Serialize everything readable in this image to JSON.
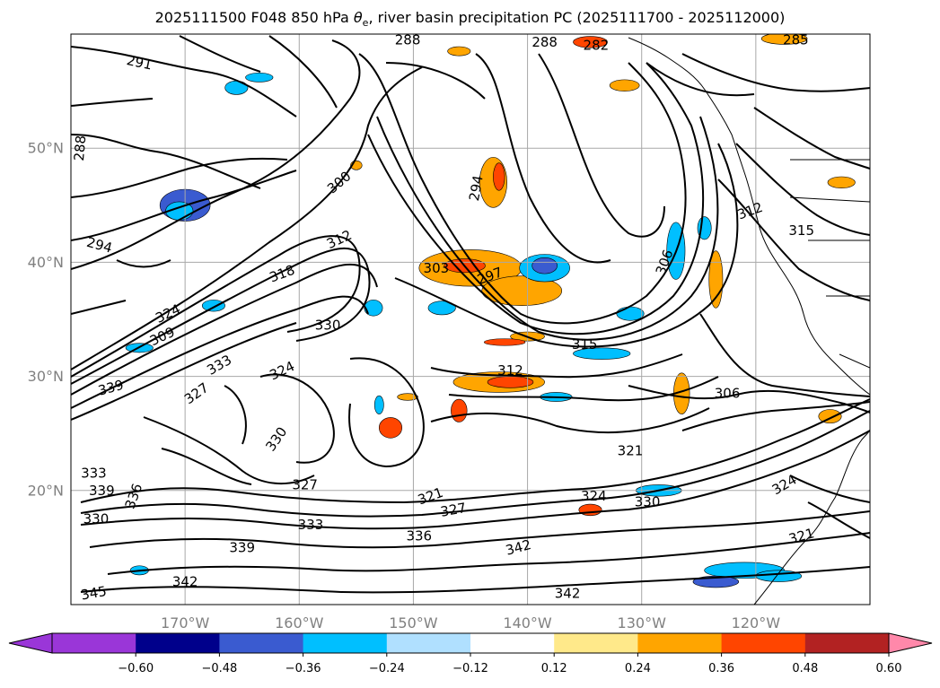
{
  "title": {
    "prefix": "2025111500 F048 850 hPa ",
    "theta": "θ",
    "theta_sub": "e",
    "suffix": ", river basin precipitation PC (2025111700 - 2025112000)"
  },
  "map": {
    "lon_range": [
      -180,
      -110
    ],
    "lat_range": [
      10,
      60
    ],
    "lat_ticks": [
      {
        "value": 50,
        "label": "50°N"
      },
      {
        "value": 40,
        "label": "40°N"
      },
      {
        "value": 30,
        "label": "30°N"
      },
      {
        "value": 20,
        "label": "20°N"
      }
    ],
    "lon_ticks": [
      {
        "value": -170,
        "label": "170°W"
      },
      {
        "value": -160,
        "label": "160°W"
      },
      {
        "value": -150,
        "label": "150°W"
      },
      {
        "value": -140,
        "label": "140°W"
      },
      {
        "value": -130,
        "label": "130°W"
      },
      {
        "value": -120,
        "label": "120°W"
      }
    ],
    "grid": true,
    "contour_variable": "850 hPa theta-e (K)",
    "contour_labels": [
      {
        "text": "291",
        "lon": -174,
        "lat": 57.5,
        "angle": 12
      },
      {
        "text": "288",
        "lon": -179.2,
        "lat": 50,
        "angle": -85
      },
      {
        "text": "288",
        "lon": -150.5,
        "lat": 59.5,
        "angle": 0
      },
      {
        "text": "288",
        "lon": -138.5,
        "lat": 59.3,
        "angle": 0
      },
      {
        "text": "282",
        "lon": -134,
        "lat": 59,
        "angle": 0
      },
      {
        "text": "285",
        "lon": -116.5,
        "lat": 59.5,
        "angle": 0
      },
      {
        "text": "294",
        "lon": -177.5,
        "lat": 41.5,
        "angle": 15
      },
      {
        "text": "294",
        "lon": -144.5,
        "lat": 46.5,
        "angle": -80
      },
      {
        "text": "300",
        "lon": -156.5,
        "lat": 47,
        "angle": -40
      },
      {
        "text": "312",
        "lon": -156.5,
        "lat": 42,
        "angle": -25
      },
      {
        "text": "318",
        "lon": -161.5,
        "lat": 39,
        "angle": -20
      },
      {
        "text": "324",
        "lon": -171.5,
        "lat": 35.5,
        "angle": -25
      },
      {
        "text": "309",
        "lon": -172,
        "lat": 33.5,
        "angle": -25
      },
      {
        "text": "303",
        "lon": -148,
        "lat": 39.5,
        "angle": 0
      },
      {
        "text": "297",
        "lon": -143.3,
        "lat": 38.8,
        "angle": -20
      },
      {
        "text": "330",
        "lon": -157.5,
        "lat": 34.5,
        "angle": 0
      },
      {
        "text": "324",
        "lon": -161.5,
        "lat": 30.5,
        "angle": -25
      },
      {
        "text": "333",
        "lon": -167,
        "lat": 31,
        "angle": -30
      },
      {
        "text": "339",
        "lon": -176.5,
        "lat": 29,
        "angle": -15
      },
      {
        "text": "327",
        "lon": -169,
        "lat": 28.5,
        "angle": -35
      },
      {
        "text": "312",
        "lon": -141.5,
        "lat": 30.5,
        "angle": 0
      },
      {
        "text": "315",
        "lon": -135,
        "lat": 32.8,
        "angle": 0
      },
      {
        "text": "306",
        "lon": -128,
        "lat": 40,
        "angle": -70
      },
      {
        "text": "306",
        "lon": -122.5,
        "lat": 28.5,
        "angle": 0
      },
      {
        "text": "312",
        "lon": -120.5,
        "lat": 44.5,
        "angle": -20
      },
      {
        "text": "315",
        "lon": -116,
        "lat": 42.8,
        "angle": 0
      },
      {
        "text": "321",
        "lon": -131,
        "lat": 23.5,
        "angle": 0
      },
      {
        "text": "324",
        "lon": -117.5,
        "lat": 20.5,
        "angle": -30
      },
      {
        "text": "321",
        "lon": -116,
        "lat": 16,
        "angle": -15
      },
      {
        "text": "330",
        "lon": -162,
        "lat": 24.5,
        "angle": -55
      },
      {
        "text": "327",
        "lon": -159.5,
        "lat": 20.5,
        "angle": 0
      },
      {
        "text": "333",
        "lon": -178,
        "lat": 21.5,
        "angle": 0
      },
      {
        "text": "339",
        "lon": -177.3,
        "lat": 20,
        "angle": 0
      },
      {
        "text": "336",
        "lon": -174.5,
        "lat": 19.5,
        "angle": -70
      },
      {
        "text": "330",
        "lon": -177.8,
        "lat": 17.5,
        "angle": 0
      },
      {
        "text": "333",
        "lon": -159,
        "lat": 17,
        "angle": 0
      },
      {
        "text": "339",
        "lon": -165,
        "lat": 15,
        "angle": 0
      },
      {
        "text": "336",
        "lon": -149.5,
        "lat": 16,
        "angle": 0
      },
      {
        "text": "342",
        "lon": -140.8,
        "lat": 15,
        "angle": -15
      },
      {
        "text": "342",
        "lon": -170,
        "lat": 12,
        "angle": 0
      },
      {
        "text": "345",
        "lon": -178,
        "lat": 11,
        "angle": -10
      },
      {
        "text": "342",
        "lon": -136.5,
        "lat": 11,
        "angle": 0
      },
      {
        "text": "321",
        "lon": -148.5,
        "lat": 19.5,
        "angle": -20
      },
      {
        "text": "327",
        "lon": -146.5,
        "lat": 18.3,
        "angle": -10
      },
      {
        "text": "324",
        "lon": -134.2,
        "lat": 19.5,
        "angle": 0
      },
      {
        "text": "330",
        "lon": -129.5,
        "lat": 19,
        "angle": 0
      }
    ]
  },
  "colorbar": {
    "extend": "both",
    "ticks": [
      "−0.60",
      "−0.48",
      "−0.36",
      "−0.24",
      "−0.12",
      "0.12",
      "0.24",
      "0.36",
      "0.48",
      "0.60"
    ],
    "colors": [
      "#9a36d8",
      "#00008b",
      "#3a5bd0",
      "#00bfff",
      "#b0e0ff",
      "#ffffff",
      "#ffe98a",
      "#ffa500",
      "#ff4500",
      "#b22222",
      "#ff88aa",
      "#ff88aa"
    ],
    "low_color": "#9a36d8",
    "high_color": "#ff88aa"
  },
  "shading": {
    "variable": "river basin precipitation PC",
    "blobs": [
      {
        "lon": -170,
        "lat": 45,
        "rx": 2.2,
        "ry": 1.4,
        "color": "#3a5bd0"
      },
      {
        "lon": -170.5,
        "lat": 44.5,
        "rx": 1.2,
        "ry": 0.8,
        "color": "#00bfff"
      },
      {
        "lon": -143,
        "lat": 47,
        "rx": 1.2,
        "ry": 2.2,
        "color": "#ffa500"
      },
      {
        "lon": -142.5,
        "lat": 47.5,
        "rx": 0.5,
        "ry": 1.2,
        "color": "#ff4500"
      },
      {
        "lon": -145,
        "lat": 39.5,
        "rx": 4.5,
        "ry": 1.6,
        "color": "#ffa500"
      },
      {
        "lon": -145.5,
        "lat": 39.7,
        "rx": 1.8,
        "ry": 0.6,
        "color": "#ff4500"
      },
      {
        "lon": -140.5,
        "lat": 37.5,
        "rx": 3.5,
        "ry": 1.3,
        "color": "#ffa500"
      },
      {
        "lon": -138.5,
        "lat": 39.5,
        "rx": 2.2,
        "ry": 1.2,
        "color": "#00bfff"
      },
      {
        "lon": -138.5,
        "lat": 39.7,
        "rx": 1.1,
        "ry": 0.7,
        "color": "#3a5bd0"
      },
      {
        "lon": -142.5,
        "lat": 29.5,
        "rx": 4.0,
        "ry": 0.9,
        "color": "#ffa500"
      },
      {
        "lon": -141.5,
        "lat": 29.5,
        "rx": 2.0,
        "ry": 0.5,
        "color": "#ff4500"
      },
      {
        "lon": -146,
        "lat": 27,
        "rx": 0.7,
        "ry": 1.0,
        "color": "#ff4500"
      },
      {
        "lon": -152,
        "lat": 25.5,
        "rx": 1.0,
        "ry": 0.9,
        "color": "#ff4500"
      },
      {
        "lon": -127,
        "lat": 41,
        "rx": 0.8,
        "ry": 2.5,
        "color": "#00bfff"
      },
      {
        "lon": -124.5,
        "lat": 43,
        "rx": 0.6,
        "ry": 1.0,
        "color": "#00bfff"
      },
      {
        "lon": -123.5,
        "lat": 38.5,
        "rx": 0.6,
        "ry": 2.5,
        "color": "#ffa500"
      },
      {
        "lon": -126.5,
        "lat": 28.5,
        "rx": 0.7,
        "ry": 1.8,
        "color": "#ffa500"
      },
      {
        "lon": -140,
        "lat": 33.5,
        "rx": 1.5,
        "ry": 0.4,
        "color": "#ffa500"
      },
      {
        "lon": -142,
        "lat": 33,
        "rx": 1.8,
        "ry": 0.3,
        "color": "#ff4500"
      },
      {
        "lon": -133.5,
        "lat": 32,
        "rx": 2.5,
        "ry": 0.5,
        "color": "#00bfff"
      },
      {
        "lon": -131,
        "lat": 35.5,
        "rx": 1.2,
        "ry": 0.6,
        "color": "#00bfff"
      },
      {
        "lon": -147.5,
        "lat": 36,
        "rx": 1.2,
        "ry": 0.6,
        "color": "#00bfff"
      },
      {
        "lon": -146,
        "lat": 58.5,
        "rx": 1.0,
        "ry": 0.4,
        "color": "#ffa500"
      },
      {
        "lon": -134.5,
        "lat": 59.3,
        "rx": 1.5,
        "ry": 0.5,
        "color": "#ff4500"
      },
      {
        "lon": -117.5,
        "lat": 59.6,
        "rx": 2.0,
        "ry": 0.5,
        "color": "#ffa500"
      },
      {
        "lon": -165.5,
        "lat": 55.3,
        "rx": 1.0,
        "ry": 0.6,
        "color": "#00bfff"
      },
      {
        "lon": -163.5,
        "lat": 56.2,
        "rx": 1.2,
        "ry": 0.4,
        "color": "#00bfff"
      },
      {
        "lon": -155,
        "lat": 48.5,
        "rx": 0.5,
        "ry": 0.4,
        "color": "#ffa500"
      },
      {
        "lon": -167.5,
        "lat": 36.2,
        "rx": 1.0,
        "ry": 0.5,
        "color": "#00bfff"
      },
      {
        "lon": -174,
        "lat": 32.5,
        "rx": 1.2,
        "ry": 0.4,
        "color": "#00bfff"
      },
      {
        "lon": -153.5,
        "lat": 36,
        "rx": 0.8,
        "ry": 0.7,
        "color": "#00bfff"
      },
      {
        "lon": -128.5,
        "lat": 20,
        "rx": 2.0,
        "ry": 0.5,
        "color": "#00bfff"
      },
      {
        "lon": -134.5,
        "lat": 18.3,
        "rx": 1.0,
        "ry": 0.5,
        "color": "#ff4500"
      },
      {
        "lon": -121,
        "lat": 13,
        "rx": 3.5,
        "ry": 0.7,
        "color": "#00bfff"
      },
      {
        "lon": -123.5,
        "lat": 12,
        "rx": 2.0,
        "ry": 0.5,
        "color": "#3a5bd0"
      },
      {
        "lon": -118,
        "lat": 12.5,
        "rx": 2.0,
        "ry": 0.5,
        "color": "#00bfff"
      },
      {
        "lon": -113.5,
        "lat": 26.5,
        "rx": 1.0,
        "ry": 0.6,
        "color": "#ffa500"
      },
      {
        "lon": -112.5,
        "lat": 47,
        "rx": 1.2,
        "ry": 0.5,
        "color": "#ffa500"
      },
      {
        "lon": -174,
        "lat": 13,
        "rx": 0.8,
        "ry": 0.4,
        "color": "#00bfff"
      },
      {
        "lon": -153,
        "lat": 27.5,
        "rx": 0.4,
        "ry": 0.8,
        "color": "#00bfff"
      },
      {
        "lon": -150.5,
        "lat": 28.2,
        "rx": 0.9,
        "ry": 0.3,
        "color": "#ffa500"
      },
      {
        "lon": -137.5,
        "lat": 28.2,
        "rx": 1.4,
        "ry": 0.4,
        "color": "#00bfff"
      },
      {
        "lon": -131.5,
        "lat": 55.5,
        "rx": 1.3,
        "ry": 0.5,
        "color": "#ffa500"
      }
    ]
  }
}
